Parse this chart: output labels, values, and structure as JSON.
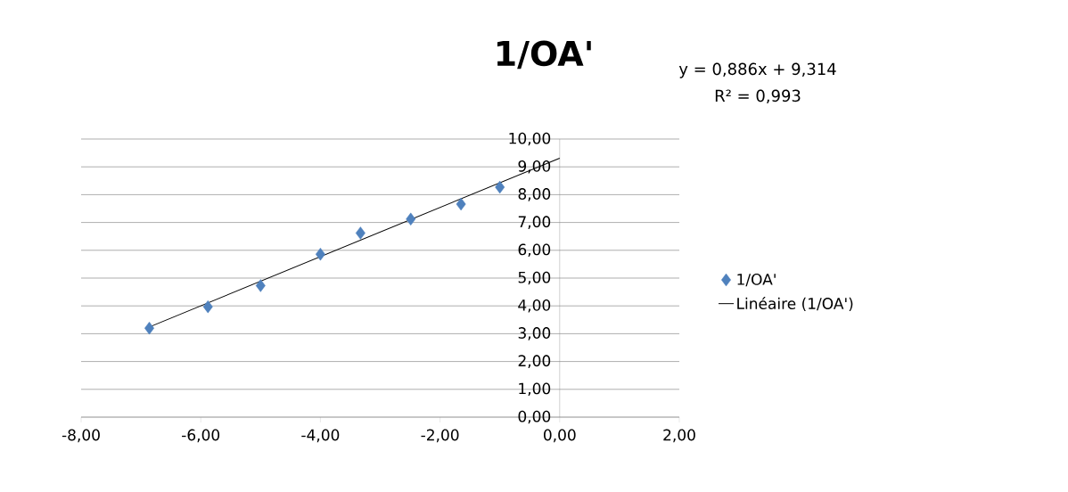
{
  "chart_data": {
    "type": "scatter",
    "title": "1/OA'",
    "annotations": [
      "y = 0,886x + 9,314",
      "R² = 0,993"
    ],
    "xlim": [
      -8,
      2
    ],
    "ylim": [
      0,
      10
    ],
    "xticks": [
      {
        "value": -8,
        "label": "-8,00"
      },
      {
        "value": -6,
        "label": "-6,00"
      },
      {
        "value": -4,
        "label": "-4,00"
      },
      {
        "value": -2,
        "label": "-2,00"
      },
      {
        "value": 0,
        "label": "0,00"
      },
      {
        "value": 2,
        "label": "2,00"
      }
    ],
    "yticks": [
      {
        "value": 0,
        "label": "0,00"
      },
      {
        "value": 1,
        "label": "1,00"
      },
      {
        "value": 2,
        "label": "2,00"
      },
      {
        "value": 3,
        "label": "3,00"
      },
      {
        "value": 4,
        "label": "4,00"
      },
      {
        "value": 5,
        "label": "5,00"
      },
      {
        "value": 6,
        "label": "6,00"
      },
      {
        "value": 7,
        "label": "7,00"
      },
      {
        "value": 8,
        "label": "8,00"
      },
      {
        "value": 9,
        "label": "9,00"
      },
      {
        "value": 10,
        "label": "10,00"
      }
    ],
    "grid": "y",
    "legend": "right",
    "series": [
      {
        "name": "1/OA'",
        "marker": "diamond",
        "color": "#4f81bd",
        "x": [
          -6.86,
          -5.88,
          -5.0,
          -4.0,
          -3.33,
          -2.49,
          -1.65,
          -1.0
        ],
        "values": [
          3.2,
          3.97,
          4.73,
          5.86,
          6.62,
          7.12,
          7.66,
          8.27
        ]
      },
      {
        "name": "Linéaire (1/OA')",
        "type": "line",
        "marker": "none",
        "line_style": "solid",
        "color": "#000000",
        "x": [
          -6.86,
          0
        ],
        "values": [
          3.24,
          9.31
        ]
      }
    ]
  }
}
